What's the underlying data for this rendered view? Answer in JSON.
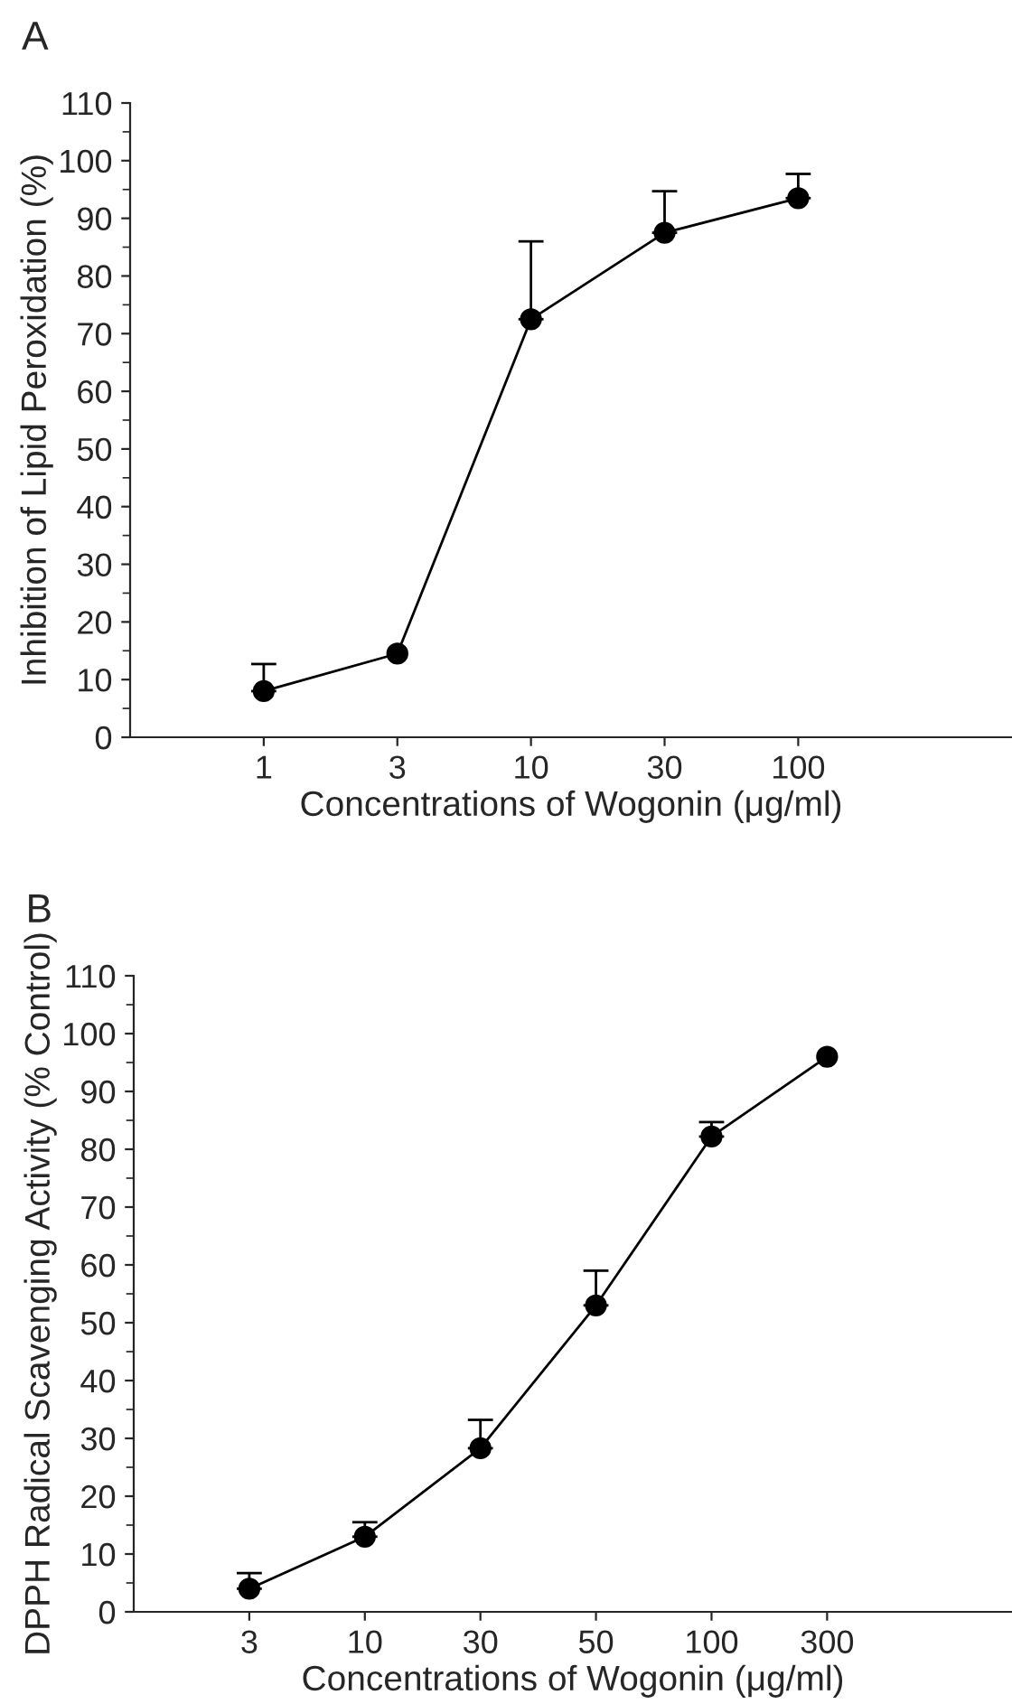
{
  "chart_data": [
    {
      "type": "line",
      "annotations": [
        "A"
      ],
      "xlabel": "Concentrations of Wogonin (μg/ml)",
      "ylabel": "Inhibition of Lipid Peroxidation (%)",
      "categories": [
        "1",
        "3",
        "10",
        "30",
        "100"
      ],
      "series": [
        {
          "color": "#000000",
          "values": [
            8,
            14.5,
            72.5,
            87.5,
            93.5
          ],
          "errors": [
            [
              8,
              12.7
            ],
            null,
            [
              72.5,
              86
            ],
            [
              87.5,
              94.7
            ],
            [
              93.5,
              97.7
            ]
          ]
        }
      ],
      "ylim": [
        0,
        110
      ],
      "yticks": [
        0,
        10,
        20,
        30,
        40,
        50,
        60,
        70,
        80,
        90,
        100,
        110
      ],
      "marker": "circle",
      "line_style": "solid",
      "grid": false,
      "legend": false
    },
    {
      "type": "line",
      "annotations": [
        "B"
      ],
      "xlabel": "Concentrations of Wogonin (μg/ml)",
      "ylabel": "DPPH Radical Scavenging Activity (% Control)",
      "categories": [
        "3",
        "10",
        "30",
        "50",
        "100",
        "300"
      ],
      "series": [
        {
          "color": "#000000",
          "values": [
            4,
            13,
            28.3,
            53,
            82.2,
            96
          ],
          "errors": [
            [
              4,
              6.7
            ],
            [
              13,
              15.5
            ],
            [
              28.3,
              33.2
            ],
            [
              53,
              59
            ],
            [
              82.2,
              84.7
            ],
            null
          ]
        }
      ],
      "ylim": [
        0,
        110
      ],
      "yticks": [
        0,
        10,
        20,
        30,
        40,
        50,
        60,
        70,
        80,
        90,
        100,
        110
      ],
      "marker": "circle",
      "line_style": "solid",
      "grid": false,
      "legend": false
    }
  ]
}
